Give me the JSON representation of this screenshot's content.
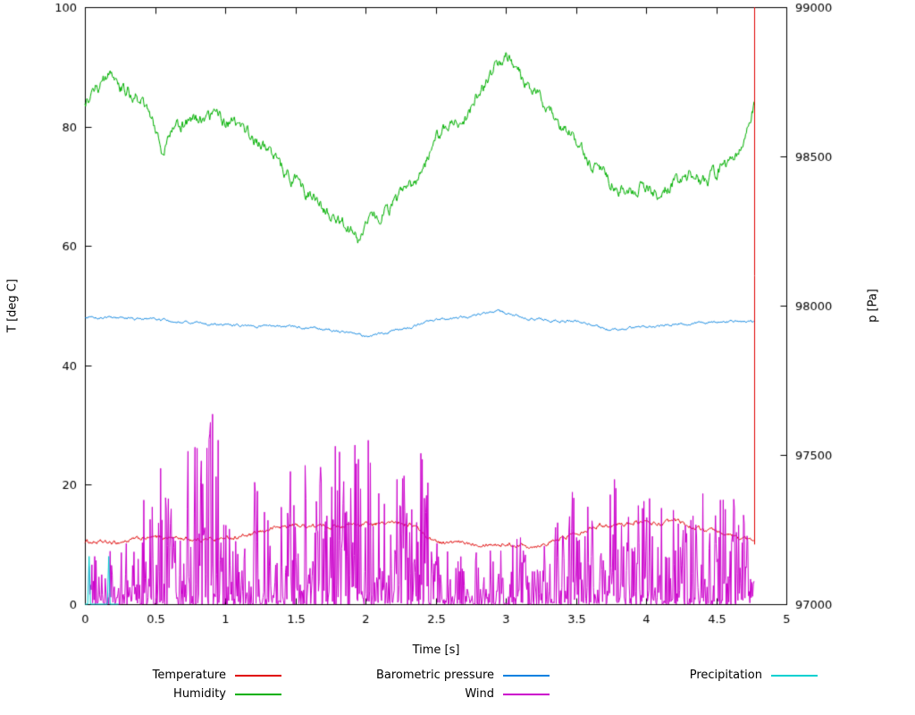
{
  "chart_data": {
    "type": "line",
    "title": "",
    "xlabel": "Time [s]",
    "ylabel_left": "T [deg C]",
    "ylabel_right": "p [Pa]",
    "xlim": [
      0,
      5
    ],
    "ylim_left": [
      0,
      100
    ],
    "ylim_right": [
      97000,
      99000
    ],
    "x_end": 4.77,
    "grid": false,
    "legend_position": "bottom",
    "x_ticks": [
      0,
      0.5,
      1,
      1.5,
      2,
      2.5,
      3,
      3.5,
      4,
      4.5,
      5
    ],
    "x_tick_labels": [
      "0",
      "0.5",
      "1",
      "1.5",
      "2",
      "2.5",
      "3",
      "3.5",
      "4",
      "4.5",
      "5"
    ],
    "y_ticks_left": [
      0,
      20,
      40,
      60,
      80,
      100
    ],
    "y_tick_labels_left": [
      "0",
      "20",
      "40",
      "60",
      "80",
      "100"
    ],
    "y_ticks_right": [
      97000,
      97500,
      98000,
      98500,
      99000
    ],
    "y_tick_labels_right": [
      "97000",
      "97500",
      "98000",
      "98500",
      "99000"
    ],
    "series": [
      {
        "name": "Temperature",
        "color": "#e00000",
        "axis": "left",
        "style": "noisy-line",
        "noise": 0.5,
        "keypoints": [
          [
            0,
            10.5
          ],
          [
            0.2,
            10.2
          ],
          [
            0.4,
            11.0
          ],
          [
            0.6,
            11.2
          ],
          [
            0.8,
            10.8
          ],
          [
            1.0,
            11.0
          ],
          [
            1.2,
            11.6
          ],
          [
            1.35,
            12.8
          ],
          [
            1.5,
            13.2
          ],
          [
            1.7,
            13.0
          ],
          [
            1.9,
            13.3
          ],
          [
            2.1,
            13.4
          ],
          [
            2.25,
            13.8
          ],
          [
            2.35,
            13.2
          ],
          [
            2.45,
            11.0
          ],
          [
            2.55,
            10.3
          ],
          [
            2.8,
            10.2
          ],
          [
            3.0,
            10.0
          ],
          [
            3.2,
            9.8
          ],
          [
            3.35,
            10.5
          ],
          [
            3.5,
            12.0
          ],
          [
            3.65,
            13.2
          ],
          [
            3.8,
            13.3
          ],
          [
            3.95,
            13.8
          ],
          [
            4.1,
            13.4
          ],
          [
            4.2,
            13.9
          ],
          [
            4.35,
            12.8
          ],
          [
            4.5,
            12.0
          ],
          [
            4.65,
            11.3
          ],
          [
            4.77,
            10.5
          ]
        ]
      },
      {
        "name": "Humidity",
        "color": "#00b000",
        "axis": "left",
        "style": "noisy-line",
        "noise": 1.6,
        "keypoints": [
          [
            0,
            84.5
          ],
          [
            0.1,
            86.5
          ],
          [
            0.17,
            88.5
          ],
          [
            0.25,
            86.0
          ],
          [
            0.35,
            85.5
          ],
          [
            0.45,
            83.0
          ],
          [
            0.55,
            76.0
          ],
          [
            0.65,
            80.0
          ],
          [
            0.8,
            81.0
          ],
          [
            0.95,
            82.0
          ],
          [
            1.05,
            80.5
          ],
          [
            1.15,
            79.0
          ],
          [
            1.3,
            76.5
          ],
          [
            1.45,
            72.0
          ],
          [
            1.55,
            69.5
          ],
          [
            1.65,
            67.5
          ],
          [
            1.75,
            65.5
          ],
          [
            1.85,
            63.5
          ],
          [
            1.95,
            61.0
          ],
          [
            2.05,
            64.5
          ],
          [
            2.15,
            66.0
          ],
          [
            2.3,
            69.0
          ],
          [
            2.4,
            72.0
          ],
          [
            2.5,
            78.0
          ],
          [
            2.6,
            81.0
          ],
          [
            2.68,
            79.0
          ],
          [
            2.8,
            85.0
          ],
          [
            2.9,
            89.0
          ],
          [
            3.0,
            92.0
          ],
          [
            3.1,
            88.5
          ],
          [
            3.2,
            85.5
          ],
          [
            3.35,
            82.0
          ],
          [
            3.5,
            77.5
          ],
          [
            3.6,
            73.5
          ],
          [
            3.75,
            71.0
          ],
          [
            3.9,
            69.0
          ],
          [
            4.0,
            70.0
          ],
          [
            4.1,
            68.5
          ],
          [
            4.2,
            70.5
          ],
          [
            4.3,
            72.0
          ],
          [
            4.4,
            71.0
          ],
          [
            4.5,
            72.5
          ],
          [
            4.6,
            74.5
          ],
          [
            4.7,
            77.5
          ],
          [
            4.77,
            84.0
          ]
        ]
      },
      {
        "name": "Barometric pressure",
        "color": "#0080e0",
        "axis": "right",
        "style": "noisy-line",
        "noise": 6,
        "keypoints": [
          [
            0,
            97962
          ],
          [
            0.3,
            97958
          ],
          [
            0.6,
            97950
          ],
          [
            0.9,
            97938
          ],
          [
            1.2,
            97932
          ],
          [
            1.5,
            97930
          ],
          [
            1.7,
            97922
          ],
          [
            1.9,
            97908
          ],
          [
            2.0,
            97898
          ],
          [
            2.1,
            97905
          ],
          [
            2.3,
            97925
          ],
          [
            2.45,
            97950
          ],
          [
            2.6,
            97955
          ],
          [
            2.75,
            97965
          ],
          [
            2.9,
            97982
          ],
          [
            3.0,
            97975
          ],
          [
            3.1,
            97962
          ],
          [
            3.3,
            97950
          ],
          [
            3.5,
            97948
          ],
          [
            3.6,
            97938
          ],
          [
            3.75,
            97915
          ],
          [
            3.9,
            97928
          ],
          [
            4.05,
            97932
          ],
          [
            4.2,
            97938
          ],
          [
            4.4,
            97942
          ],
          [
            4.6,
            97948
          ],
          [
            4.77,
            97945
          ]
        ]
      },
      {
        "name": "Wind",
        "color": "#cc00cc",
        "axis": "left",
        "style": "spiky",
        "envelope": [
          [
            0,
            8
          ],
          [
            0.2,
            9
          ],
          [
            0.35,
            12
          ],
          [
            0.5,
            25
          ],
          [
            0.65,
            24
          ],
          [
            0.75,
            30
          ],
          [
            0.9,
            34
          ],
          [
            1.0,
            26
          ],
          [
            1.15,
            21
          ],
          [
            1.3,
            20
          ],
          [
            1.45,
            22
          ],
          [
            1.6,
            25
          ],
          [
            1.75,
            26
          ],
          [
            1.9,
            28
          ],
          [
            2.0,
            31
          ],
          [
            2.1,
            26
          ],
          [
            2.2,
            29
          ],
          [
            2.35,
            28
          ],
          [
            2.45,
            22
          ],
          [
            2.55,
            13
          ],
          [
            2.7,
            11
          ],
          [
            2.85,
            11
          ],
          [
            3.0,
            10
          ],
          [
            3.15,
            13
          ],
          [
            3.3,
            11
          ],
          [
            3.45,
            24
          ],
          [
            3.6,
            20
          ],
          [
            3.75,
            22
          ],
          [
            3.9,
            23
          ],
          [
            4.05,
            21
          ],
          [
            4.2,
            19
          ],
          [
            4.35,
            18
          ],
          [
            4.5,
            21
          ],
          [
            4.65,
            19
          ],
          [
            4.77,
            12
          ]
        ]
      },
      {
        "name": "Precipitation",
        "color": "#00d0d0",
        "axis": "left",
        "style": "steps",
        "points": [
          [
            0,
            0
          ],
          [
            0.02,
            0
          ],
          [
            0.03,
            8
          ],
          [
            0.04,
            0
          ],
          [
            0.16,
            0
          ],
          [
            0.17,
            8
          ],
          [
            0.18,
            0
          ],
          [
            0.24,
            0
          ]
        ]
      }
    ],
    "end_spike": {
      "x": 4.77,
      "y_from": 10,
      "y_to": 100,
      "color": "#e00000"
    }
  },
  "legend": {
    "row1": [
      "Temperature",
      "Barometric pressure",
      "Precipitation"
    ],
    "row2": [
      "Humidity",
      "Wind"
    ]
  }
}
